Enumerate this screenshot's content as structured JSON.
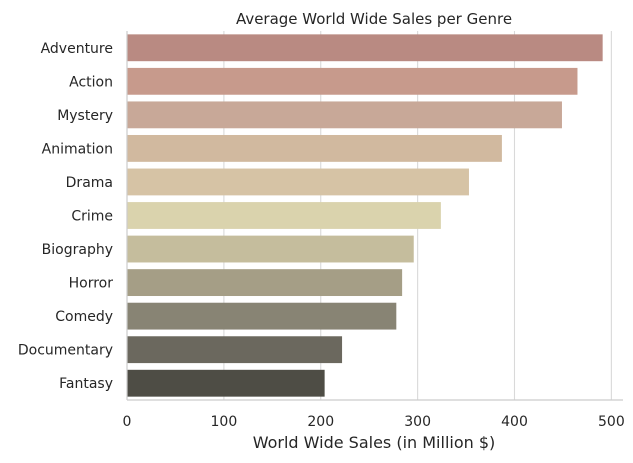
{
  "chart_data": {
    "type": "bar",
    "orientation": "horizontal",
    "title": "Average World Wide Sales per Genre",
    "xlabel": "World Wide Sales (in Million $)",
    "ylabel": "",
    "xlim": [
      0,
      512
    ],
    "x_ticks": [
      "0",
      "100",
      "200",
      "300",
      "400",
      "500"
    ],
    "grid": "vertical",
    "categories": [
      "Adventure",
      "Action",
      "Mystery",
      "Animation",
      "Drama",
      "Crime",
      "Biography",
      "Horror",
      "Comedy",
      "Documentary",
      "Fantasy"
    ],
    "values": [
      491,
      465,
      449,
      387,
      353,
      324,
      296,
      284,
      278,
      222,
      204
    ],
    "colors": [
      "#b98a82",
      "#c79a8c",
      "#c8a898",
      "#d1b99f",
      "#d6c3a5",
      "#dad3ad",
      "#c5bd9d",
      "#a59e86",
      "#888474",
      "#6b685e",
      "#4e4d45"
    ]
  }
}
